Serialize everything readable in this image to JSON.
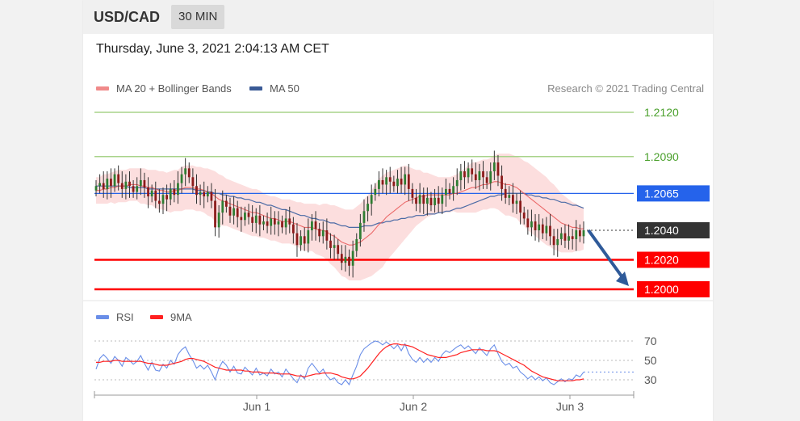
{
  "header": {
    "symbol": "USD/CAD",
    "timeframe": "30 MIN"
  },
  "datetime": "Thursday, June 3, 2021 2:04:13 AM CET",
  "legend": {
    "ma20_label": "MA 20 + Bollinger Bands",
    "ma50_label": "MA 50",
    "credit": "Research © 2021 Trading Central"
  },
  "rsi_legend": {
    "rsi_label": "RSI",
    "ma_label": "9MA"
  },
  "colors": {
    "candle_up": "#2e7d32",
    "candle_down": "#8b1a1a",
    "ma20": "#e74c4c",
    "ma50": "#4a6aa5",
    "bollinger_fill": "#fbd3d3",
    "resistance": "#a8d38a",
    "resistance_text": "#4aa02c",
    "pivot": "#2563eb",
    "support": "#ff0000",
    "last": "#333333",
    "arrow": "#2f5a99",
    "rsi": "#6a8ee8",
    "rsi_ma": "#ff2020"
  },
  "chart_data": [
    {
      "type": "candlestick",
      "title": "USD/CAD",
      "x_tick_labels": [
        "Jun 1",
        "Jun 2",
        "Jun 3"
      ],
      "ylim": [
        1.1995,
        1.2125
      ],
      "levels": [
        {
          "value": 1.212,
          "label": "1.2120",
          "kind": "resistance"
        },
        {
          "value": 1.209,
          "label": "1.2090",
          "kind": "resistance"
        },
        {
          "value": 1.2065,
          "label": "1.2065",
          "kind": "pivot"
        },
        {
          "value": 1.204,
          "label": "1.2040",
          "kind": "last"
        },
        {
          "value": 1.202,
          "label": "1.2020",
          "kind": "support"
        },
        {
          "value": 1.2,
          "label": "1.2000",
          "kind": "support"
        }
      ],
      "closes": [
        1.207,
        1.2072,
        1.2068,
        1.2075,
        1.207,
        1.2078,
        1.2072,
        1.2068,
        1.2073,
        1.207,
        1.2066,
        1.207,
        1.2074,
        1.2069,
        1.2063,
        1.2067,
        1.206,
        1.2058,
        1.2064,
        1.2061,
        1.2068,
        1.2064,
        1.2072,
        1.2078,
        1.2082,
        1.2076,
        1.207,
        1.2064,
        1.2066,
        1.2063,
        1.2066,
        1.206,
        1.2042,
        1.2052,
        1.206,
        1.2056,
        1.205,
        1.2055,
        1.2049,
        1.2047,
        1.2052,
        1.2049,
        1.2045,
        1.205,
        1.2044,
        1.2046,
        1.2043,
        1.2048,
        1.2044,
        1.2046,
        1.2042,
        1.2048,
        1.2044,
        1.2038,
        1.203,
        1.2036,
        1.2031,
        1.204,
        1.2046,
        1.2041,
        1.2036,
        1.204,
        1.2033,
        1.2028,
        1.203,
        1.2024,
        1.2018,
        1.2022,
        1.2016,
        1.2026,
        1.2034,
        1.2045,
        1.2053,
        1.2058,
        1.2064,
        1.2068,
        1.2074,
        1.2071,
        1.2076,
        1.2073,
        1.207,
        1.2075,
        1.2071,
        1.2078,
        1.2068,
        1.2062,
        1.2058,
        1.2064,
        1.2058,
        1.2062,
        1.2057,
        1.2062,
        1.2058,
        1.2064,
        1.2068,
        1.2065,
        1.207,
        1.2074,
        1.208,
        1.2076,
        1.2082,
        1.2078,
        1.2074,
        1.208,
        1.2076,
        1.2072,
        1.208,
        1.2086,
        1.2077,
        1.2068,
        1.2062,
        1.2064,
        1.2058,
        1.206,
        1.2052,
        1.2048,
        1.2042,
        1.2046,
        1.204,
        1.2044,
        1.2038,
        1.2043,
        1.2036,
        1.203,
        1.2034,
        1.2038,
        1.2033,
        1.2036,
        1.2034,
        1.204,
        1.2036,
        1.204
      ],
      "ma20": [
        1.2067,
        1.2067,
        1.2068,
        1.2068,
        1.2069,
        1.2069,
        1.207,
        1.207,
        1.207,
        1.2071,
        1.2071,
        1.2071,
        1.207,
        1.207,
        1.2069,
        1.2069,
        1.2068,
        1.2067,
        1.2067,
        1.2066,
        1.2066,
        1.2067,
        1.2067,
        1.2068,
        1.2069,
        1.2069,
        1.2069,
        1.2068,
        1.2068,
        1.2067,
        1.2066,
        1.2065,
        1.2063,
        1.2061,
        1.206,
        1.2059,
        1.2058,
        1.2057,
        1.2056,
        1.2055,
        1.2054,
        1.2053,
        1.2052,
        1.2052,
        1.2051,
        1.205,
        1.2049,
        1.2048,
        1.2048,
        1.2047,
        1.2046,
        1.2046,
        1.2046,
        1.2045,
        1.2044,
        1.2043,
        1.2042,
        1.2042,
        1.2042,
        1.2041,
        1.204,
        1.204,
        1.2039,
        1.2037,
        1.2036,
        1.2034,
        1.2032,
        1.2031,
        1.203,
        1.203,
        1.2031,
        1.2032,
        1.2034,
        1.2036,
        1.2038,
        1.2041,
        1.2044,
        1.2046,
        1.2049,
        1.2051,
        1.2053,
        1.2055,
        1.2057,
        1.2059,
        1.206,
        1.2061,
        1.2062,
        1.2063,
        1.2063,
        1.2064,
        1.2064,
        1.2064,
        1.2064,
        1.2064,
        1.2064,
        1.2064,
        1.2065,
        1.2065,
        1.2066,
        1.2067,
        1.2068,
        1.2069,
        1.2069,
        1.207,
        1.2071,
        1.2071,
        1.2072,
        1.2073,
        1.2073,
        1.2072,
        1.2071,
        1.2071,
        1.207,
        1.2069,
        1.2067,
        1.2065,
        1.2063,
        1.2061,
        1.2059,
        1.2057,
        1.2055,
        1.2053,
        1.2051,
        1.2049,
        1.2047,
        1.2045,
        1.2044,
        1.2043,
        1.2042,
        1.2042,
        1.2041,
        1.2041
      ],
      "ma50": [
        1.207,
        1.207,
        1.207,
        1.207,
        1.207,
        1.207,
        1.207,
        1.207,
        1.207,
        1.2069,
        1.2069,
        1.2069,
        1.2069,
        1.2069,
        1.2068,
        1.2068,
        1.2068,
        1.2068,
        1.2068,
        1.2068,
        1.2068,
        1.2068,
        1.2068,
        1.2068,
        1.2068,
        1.2068,
        1.2068,
        1.2067,
        1.2067,
        1.2067,
        1.2066,
        1.2066,
        1.2065,
        1.2065,
        1.2064,
        1.2064,
        1.2063,
        1.2063,
        1.2062,
        1.2062,
        1.2061,
        1.2061,
        1.206,
        1.2059,
        1.2059,
        1.2058,
        1.2057,
        1.2057,
        1.2056,
        1.2055,
        1.2054,
        1.2054,
        1.2053,
        1.2052,
        1.2051,
        1.205,
        1.205,
        1.2049,
        1.2048,
        1.2048,
        1.2047,
        1.2047,
        1.2046,
        1.2045,
        1.2045,
        1.2044,
        1.2043,
        1.2043,
        1.2042,
        1.2042,
        1.2042,
        1.2042,
        1.2043,
        1.2043,
        1.2043,
        1.2044,
        1.2045,
        1.2045,
        1.2046,
        1.2046,
        1.2047,
        1.2047,
        1.2048,
        1.2048,
        1.2049,
        1.2049,
        1.205,
        1.205,
        1.205,
        1.2051,
        1.2051,
        1.2051,
        1.2052,
        1.2052,
        1.2053,
        1.2053,
        1.2054,
        1.2055,
        1.2055,
        1.2056,
        1.2057,
        1.2058,
        1.2059,
        1.206,
        1.2061,
        1.2062,
        1.2063,
        1.2063,
        1.2064,
        1.2064,
        1.2065,
        1.2065,
        1.2065,
        1.2065,
        1.2065,
        1.2065,
        1.2064,
        1.2064,
        1.2063,
        1.2063,
        1.2062,
        1.2062,
        1.2061,
        1.2061,
        1.206,
        1.2059,
        1.2059,
        1.2058,
        1.2057,
        1.2057,
        1.2056,
        1.2055
      ],
      "bollinger_width": [
        0.0009,
        0.0009,
        0.001,
        0.001,
        0.001,
        0.0011,
        0.0011,
        0.0011,
        0.0011,
        0.0011,
        0.0011,
        0.0011,
        0.0012,
        0.0012,
        0.0012,
        0.0012,
        0.0013,
        0.0013,
        0.0013,
        0.0013,
        0.0014,
        0.0014,
        0.0014,
        0.0015,
        0.0015,
        0.0015,
        0.0015,
        0.0015,
        0.0015,
        0.0015,
        0.0016,
        0.0016,
        0.0017,
        0.0017,
        0.0017,
        0.0016,
        0.0016,
        0.0016,
        0.0016,
        0.0016,
        0.0016,
        0.0016,
        0.0016,
        0.0016,
        0.0016,
        0.0015,
        0.0015,
        0.0015,
        0.0015,
        0.0015,
        0.0015,
        0.0015,
        0.0015,
        0.0015,
        0.0015,
        0.0016,
        0.0016,
        0.0016,
        0.0016,
        0.0017,
        0.0017,
        0.0018,
        0.0019,
        0.002,
        0.0021,
        0.0022,
        0.0023,
        0.0023,
        0.0024,
        0.0024,
        0.0025,
        0.0026,
        0.0027,
        0.0028,
        0.0029,
        0.003,
        0.0031,
        0.0031,
        0.003,
        0.0029,
        0.0028,
        0.0027,
        0.0026,
        0.0025,
        0.0023,
        0.0021,
        0.0019,
        0.0018,
        0.0016,
        0.0015,
        0.0014,
        0.0013,
        0.0012,
        0.0012,
        0.0012,
        0.0012,
        0.0012,
        0.0013,
        0.0014,
        0.0015,
        0.0016,
        0.0017,
        0.0017,
        0.0017,
        0.0017,
        0.0017,
        0.0017,
        0.0018,
        0.0019,
        0.002,
        0.0021,
        0.0021,
        0.0021,
        0.0021,
        0.0022,
        0.0022,
        0.0023,
        0.0023,
        0.0023,
        0.0023,
        0.0023,
        0.0023,
        0.0022,
        0.0022,
        0.0021,
        0.002,
        0.0019,
        0.0018,
        0.0017,
        0.0016,
        0.0015,
        0.0014,
        0.0013,
        0.0012
      ],
      "forecast_arrow": {
        "from": 1.204,
        "to": 1.2
      }
    },
    {
      "type": "line",
      "title": "RSI",
      "y_tick_labels": [
        "70",
        "50",
        "30"
      ],
      "ylim": [
        20,
        80
      ],
      "series": [
        {
          "name": "RSI",
          "values": [
            41,
            52,
            56,
            52,
            47,
            54,
            50,
            44,
            53,
            50,
            46,
            49,
            55,
            47,
            40,
            48,
            40,
            39,
            46,
            42,
            50,
            46,
            56,
            61,
            64,
            56,
            50,
            42,
            45,
            41,
            45,
            38,
            30,
            42,
            49,
            45,
            38,
            44,
            37,
            36,
            43,
            39,
            35,
            42,
            35,
            37,
            34,
            41,
            36,
            38,
            33,
            41,
            36,
            31,
            27,
            35,
            31,
            42,
            47,
            42,
            37,
            41,
            34,
            30,
            32,
            27,
            25,
            30,
            25,
            35,
            44,
            56,
            62,
            65,
            68,
            70,
            69,
            66,
            69,
            66,
            62,
            66,
            60,
            67,
            57,
            51,
            48,
            53,
            48,
            52,
            48,
            53,
            49,
            56,
            60,
            58,
            61,
            64,
            66,
            62,
            65,
            61,
            57,
            63,
            59,
            55,
            62,
            66,
            57,
            49,
            45,
            47,
            42,
            44,
            38,
            35,
            31,
            34,
            30,
            33,
            29,
            32,
            27,
            25,
            28,
            31,
            28,
            31,
            30,
            35,
            33,
            38
          ]
        },
        {
          "name": "9MA",
          "values": [
            48,
            48,
            49,
            49,
            49,
            50,
            50,
            49,
            49,
            49,
            49,
            49,
            49,
            48,
            47,
            47,
            46,
            45,
            45,
            45,
            46,
            47,
            48,
            49,
            51,
            52,
            52,
            51,
            50,
            49,
            47,
            45,
            43,
            42,
            41,
            40,
            40,
            40,
            40,
            40,
            39,
            39,
            38,
            38,
            38,
            37,
            37,
            37,
            37,
            36,
            36,
            36,
            36,
            35,
            34,
            34,
            33,
            34,
            35,
            36,
            36,
            37,
            37,
            37,
            36,
            35,
            33,
            32,
            31,
            31,
            32,
            34,
            38,
            42,
            47,
            52,
            57,
            61,
            64,
            66,
            67,
            67,
            66,
            66,
            65,
            64,
            62,
            60,
            58,
            56,
            55,
            54,
            53,
            53,
            53,
            54,
            55,
            56,
            58,
            59,
            60,
            61,
            61,
            61,
            61,
            60,
            60,
            60,
            59,
            57,
            55,
            53,
            51,
            49,
            47,
            45,
            42,
            39,
            37,
            35,
            33,
            32,
            31,
            30,
            29,
            29,
            29,
            29,
            29,
            30,
            30,
            31
          ]
        }
      ],
      "x_tick_labels": [
        "Jun 1",
        "Jun 2",
        "Jun 3"
      ]
    }
  ]
}
